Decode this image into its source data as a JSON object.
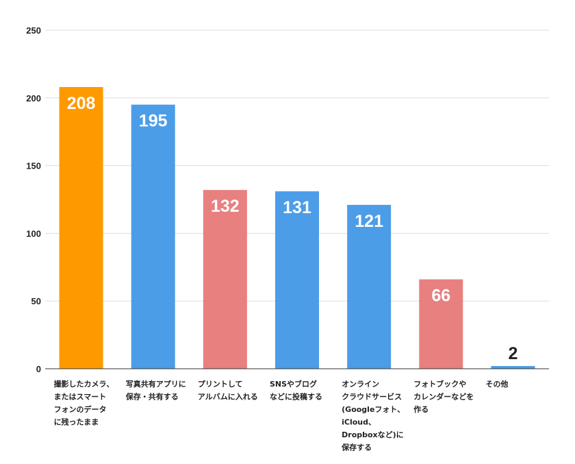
{
  "chart_data": {
    "type": "bar",
    "categories": [
      [
        "撮影したカメラ、",
        "またはスマート",
        "フォンのデータ",
        "に残ったまま"
      ],
      [
        "写真共有アプリに",
        "保存・共有する"
      ],
      [
        "プリントして",
        "アルバムに入れる"
      ],
      [
        "SNSやブログ",
        "などに投稿する"
      ],
      [
        "オンライン",
        "クラウドサービス",
        "(Googleフォト、",
        "iCloud、",
        "Dropboxなど)に",
        "保存する"
      ],
      [
        "フォトブックや",
        "カレンダーなどを",
        "作る"
      ],
      [
        "その他"
      ]
    ],
    "values": [
      208,
      195,
      132,
      131,
      121,
      66,
      2
    ],
    "value_labels": [
      "208",
      "195",
      "132",
      "131",
      "121",
      "66",
      "2"
    ],
    "bar_colors": [
      "#ff9900",
      "#4c9de8",
      "#e88080",
      "#4c9de8",
      "#4c9de8",
      "#e88080",
      "#4c9de8"
    ],
    "ylim": [
      0,
      250
    ],
    "yticks": [
      0,
      50,
      100,
      150,
      200,
      250
    ],
    "ytick_labels": [
      "0",
      "50",
      "100",
      "150",
      "200",
      "250"
    ],
    "grid": true,
    "title": "",
    "xlabel": "",
    "ylabel": ""
  }
}
